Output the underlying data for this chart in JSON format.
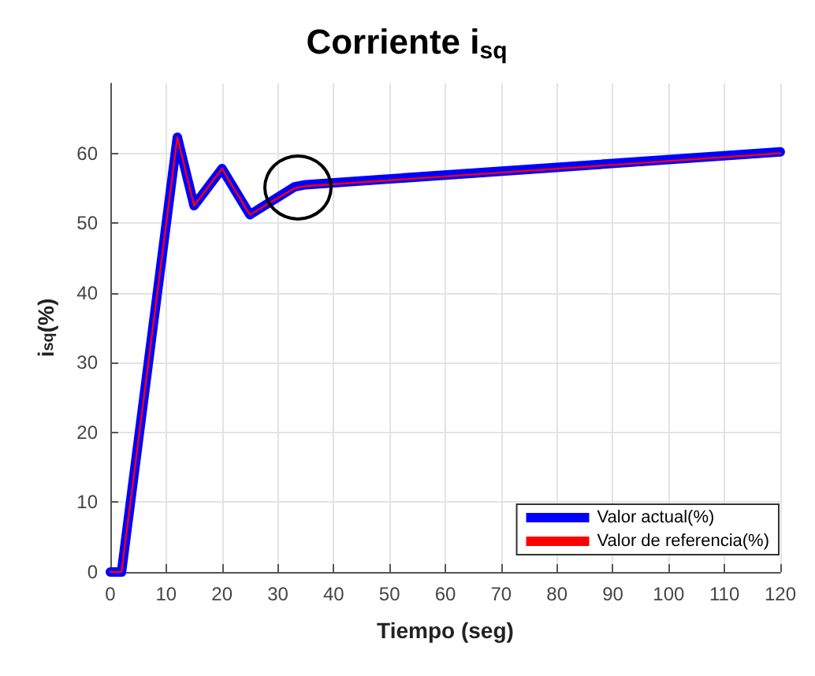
{
  "chart_data": {
    "type": "line",
    "title": "Corriente i$_{sq}$",
    "xlabel": "Tiempo (seg)",
    "ylabel": "i$_{sq}$(%)",
    "x": [
      0,
      2,
      12,
      15,
      20,
      25,
      33,
      35,
      120
    ],
    "series": [
      {
        "name": "Valor actual(%)",
        "color": "#0000ff",
        "values": [
          0,
          0,
          62.3,
          52.5,
          57.8,
          51.2,
          55.2,
          55.5,
          60.2
        ]
      },
      {
        "name": "Valor de referencia(%)",
        "color": "#ff0000",
        "values": [
          0,
          0,
          62.3,
          52.5,
          57.8,
          51.2,
          55.0,
          55.3,
          60.0
        ]
      }
    ],
    "xlim": [
      0,
      120
    ],
    "xticks": [
      0,
      10,
      20,
      30,
      40,
      50,
      60,
      70,
      80,
      90,
      100,
      110,
      120
    ],
    "ylim": [
      0,
      70
    ],
    "yticks": [
      0,
      10,
      20,
      30,
      40,
      50,
      60
    ],
    "grid": true,
    "legend": "bottom right",
    "marker": "none",
    "line_style": "solid"
  }
}
